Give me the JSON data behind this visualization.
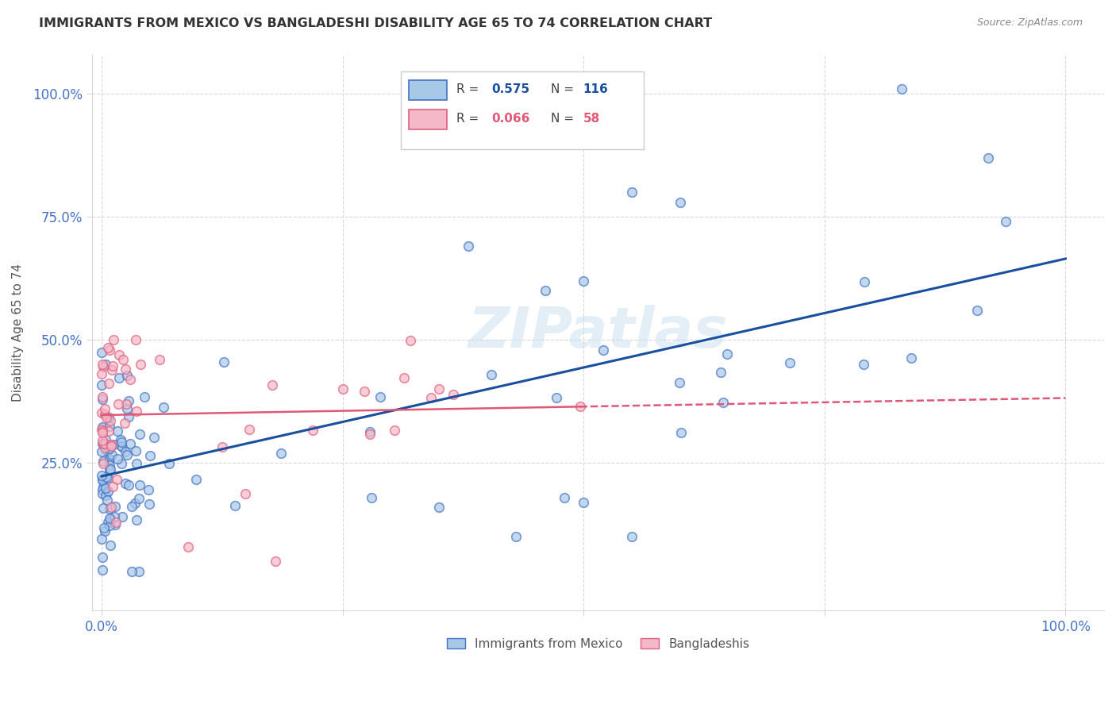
{
  "title": "IMMIGRANTS FROM MEXICO VS BANGLADESHI DISABILITY AGE 65 TO 74 CORRELATION CHART",
  "source": "Source: ZipAtlas.com",
  "ylabel": "Disability Age 65 to 74",
  "mexico_R": 0.575,
  "mexico_N": 116,
  "bangladesh_R": 0.066,
  "bangladesh_N": 58,
  "mexico_color": "#a8c8e8",
  "mexico_edge_color": "#4472c4",
  "bangladesh_color": "#f4b8c8",
  "bangladesh_edge_color": "#e06080",
  "mexico_line_color": "#1a4fa0",
  "bangladesh_line_color": "#e05878",
  "watermark_color": "#c8dff0",
  "grid_color": "#d8d8d8",
  "tick_color": "#4472c4",
  "title_color": "#333333",
  "source_color": "#888888",
  "ylabel_color": "#555555"
}
